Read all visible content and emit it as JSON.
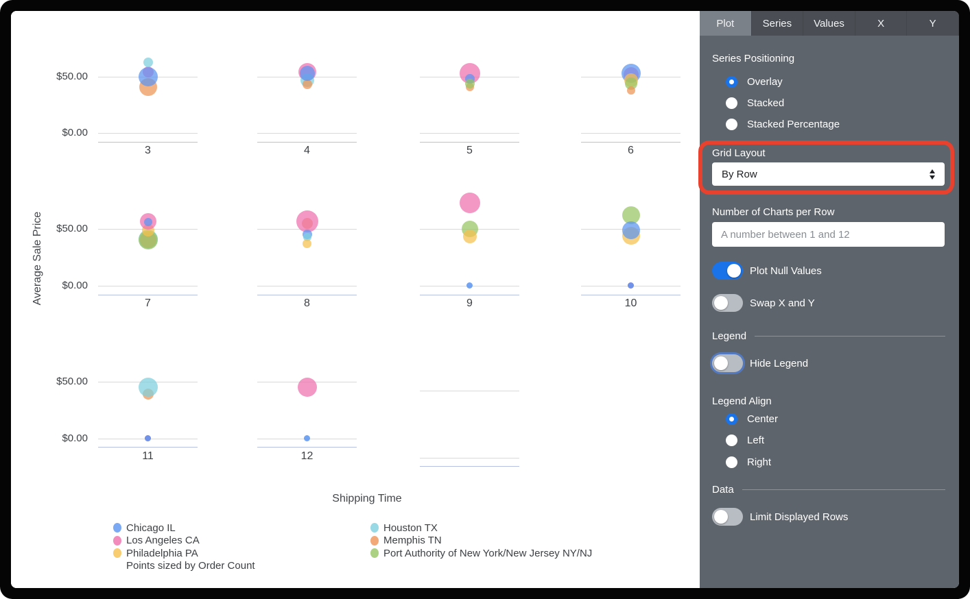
{
  "panel": {
    "tabs": [
      {
        "label": "Plot",
        "active": true
      },
      {
        "label": "Series",
        "active": false
      },
      {
        "label": "Values",
        "active": false
      },
      {
        "label": "X",
        "active": false
      },
      {
        "label": "Y",
        "active": false
      }
    ],
    "series_positioning": {
      "label": "Series Positioning",
      "options": [
        {
          "label": "Overlay",
          "selected": true
        },
        {
          "label": "Stacked",
          "selected": false
        },
        {
          "label": "Stacked Percentage",
          "selected": false
        }
      ]
    },
    "grid_layout": {
      "label": "Grid Layout",
      "value": "By Row"
    },
    "charts_per_row": {
      "label": "Number of Charts per Row",
      "value": "",
      "placeholder": "A number between 1 and 12"
    },
    "toggles": [
      {
        "label": "Plot Null Values",
        "on": true,
        "focused": false
      },
      {
        "label": "Swap X and Y",
        "on": false,
        "focused": false
      }
    ],
    "legend_section": {
      "header": "Legend",
      "hide_legend": {
        "label": "Hide Legend",
        "on": false,
        "focused": true
      },
      "align": {
        "label": "Legend Align",
        "options": [
          {
            "label": "Center",
            "selected": true
          },
          {
            "label": "Left",
            "selected": false
          },
          {
            "label": "Right",
            "selected": false
          }
        ]
      }
    },
    "data_section": {
      "header": "Data",
      "limit_rows": {
        "label": "Limit Displayed Rows",
        "on": false,
        "focused": false
      }
    },
    "annotation_color": "#e8422e"
  },
  "chart_data": {
    "type": "scatter",
    "xlabel": "Shipping Time",
    "ylabel": "Average Sale Price",
    "y_tick_labels": [
      "$50.00",
      "$0.00"
    ],
    "y_gridline_values": [
      50,
      0
    ],
    "size_note": "Points sized by Order Count",
    "legend_position": "bottom-two-columns",
    "series": [
      {
        "name": "Chicago IL",
        "color": "#5b94f1"
      },
      {
        "name": "Los Angeles CA",
        "color": "#ee6fad"
      },
      {
        "name": "Philadelphia PA",
        "color": "#f6c04f"
      },
      {
        "name": "Houston TX",
        "color": "#7ed0de"
      },
      {
        "name": "Memphis TN",
        "color": "#ef9455"
      },
      {
        "name": "Port Authority of New York/New Jersey NY/NJ",
        "color": "#97c563"
      }
    ],
    "facets": [
      {
        "label": "3",
        "points": [
          {
            "series": "Los Angeles CA",
            "y": 54,
            "r": 8
          },
          {
            "series": "Memphis TN",
            "y": 41,
            "r": 13
          },
          {
            "series": "Chicago IL",
            "y": 50,
            "r": 14
          },
          {
            "series": "Houston TX",
            "y": 63,
            "r": 7
          }
        ]
      },
      {
        "label": "4",
        "points": [
          {
            "series": "Los Angeles CA",
            "y": 54,
            "r": 13
          },
          {
            "series": "Houston TX",
            "y": 47,
            "r": 10
          },
          {
            "series": "Memphis TN",
            "y": 43,
            "r": 7
          },
          {
            "series": "Chicago IL",
            "y": 53,
            "r": 11
          }
        ]
      },
      {
        "label": "5",
        "points": [
          {
            "series": "Los Angeles CA",
            "y": 53,
            "r": 15
          },
          {
            "series": "Chicago IL",
            "y": 48,
            "r": 7
          },
          {
            "series": "Memphis TN",
            "y": 41,
            "r": 6
          },
          {
            "series": "Port Authority of New York/New Jersey NY/NJ",
            "y": 44,
            "r": 7
          }
        ]
      },
      {
        "label": "6",
        "points": [
          {
            "series": "Los Angeles CA",
            "y": 52,
            "r": 11
          },
          {
            "series": "Chicago IL",
            "y": 53,
            "r": 14
          },
          {
            "series": "Philadelphia PA",
            "y": 47,
            "r": 10
          },
          {
            "series": "Port Authority of New York/New Jersey NY/NJ",
            "y": 44,
            "r": 9
          },
          {
            "series": "Memphis TN",
            "y": 38,
            "r": 6
          }
        ]
      },
      {
        "label": "7",
        "points": [
          {
            "series": "Houston TX",
            "y": 41,
            "r": 14
          },
          {
            "series": "Memphis TN",
            "y": 40,
            "r": 12
          },
          {
            "series": "Port Authority of New York/New Jersey NY/NJ",
            "y": 40,
            "r": 14
          },
          {
            "series": "Philadelphia PA",
            "y": 49,
            "r": 9
          },
          {
            "series": "Los Angeles CA",
            "y": 57,
            "r": 12
          },
          {
            "series": "Chicago IL",
            "y": 56,
            "r": 6
          }
        ]
      },
      {
        "label": "8",
        "points": [
          {
            "series": "Memphis TN",
            "y": 55,
            "r": 8
          },
          {
            "series": "Los Angeles CA",
            "y": 57,
            "r": 16
          },
          {
            "series": "Chicago IL",
            "y": 45,
            "r": 7
          },
          {
            "series": "Houston TX",
            "y": 42.5,
            "r": 6
          },
          {
            "series": "Philadelphia PA",
            "y": 37,
            "r": 6.5
          }
        ]
      },
      {
        "label": "9",
        "points": [
          {
            "series": "Los Angeles CA",
            "y": 73,
            "r": 15
          },
          {
            "series": "Port Authority of New York/New Jersey NY/NJ",
            "y": 50,
            "r": 12
          },
          {
            "series": "Philadelphia PA",
            "y": 43,
            "r": 10
          },
          {
            "series": "Chicago IL",
            "y": 0,
            "r": 4.5
          }
        ]
      },
      {
        "label": "10",
        "points": [
          {
            "series": "Port Authority of New York/New Jersey NY/NJ",
            "y": 62,
            "r": 13
          },
          {
            "series": "Philadelphia PA",
            "y": 44,
            "r": 13
          },
          {
            "series": "Chicago IL",
            "y": 49,
            "r": 13
          },
          {
            "series": "Los Angeles CA",
            "y": 0,
            "r": 4.5
          },
          {
            "series": "Chicago IL",
            "y": 0,
            "r": 4.5
          }
        ]
      },
      {
        "label": "11",
        "points": [
          {
            "series": "Memphis TN",
            "y": 39,
            "r": 8
          },
          {
            "series": "Houston TX",
            "y": 45,
            "r": 14
          },
          {
            "series": "Los Angeles CA",
            "y": 0,
            "r": 4.5
          },
          {
            "series": "Chicago IL",
            "y": 0,
            "r": 4.5
          }
        ]
      },
      {
        "label": "12",
        "points": [
          {
            "series": "Los Angeles CA",
            "y": 45,
            "r": 14
          },
          {
            "series": "Chicago IL",
            "y": 0,
            "r": 4.5
          }
        ]
      },
      {
        "label": "",
        "empty": true,
        "points": []
      }
    ]
  }
}
